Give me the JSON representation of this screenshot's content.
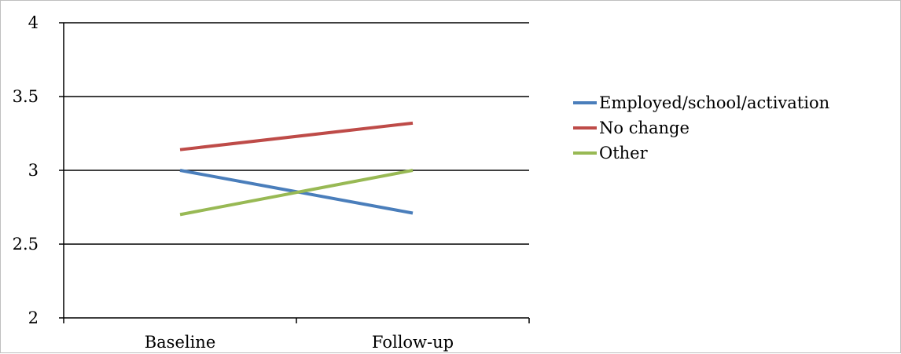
{
  "chart_data": {
    "type": "line",
    "title": "",
    "xlabel": "",
    "ylabel": "",
    "categories": [
      "Baseline",
      "Follow-up"
    ],
    "ylim": [
      2,
      4
    ],
    "y_ticks": [
      "2",
      "2.5",
      "3",
      "3.5",
      "4"
    ],
    "y_tick_values": [
      2,
      2.5,
      3,
      3.5,
      4
    ],
    "grid": true,
    "legend_position": "right",
    "series": [
      {
        "name": "Employed/school/activation",
        "values": [
          3.0,
          2.71
        ],
        "color": "#4a7ebb"
      },
      {
        "name": "No change",
        "values": [
          3.14,
          3.32
        ],
        "color": "#be4b48"
      },
      {
        "name": "Other",
        "values": [
          2.7,
          3.0
        ],
        "color": "#98b954"
      }
    ]
  }
}
